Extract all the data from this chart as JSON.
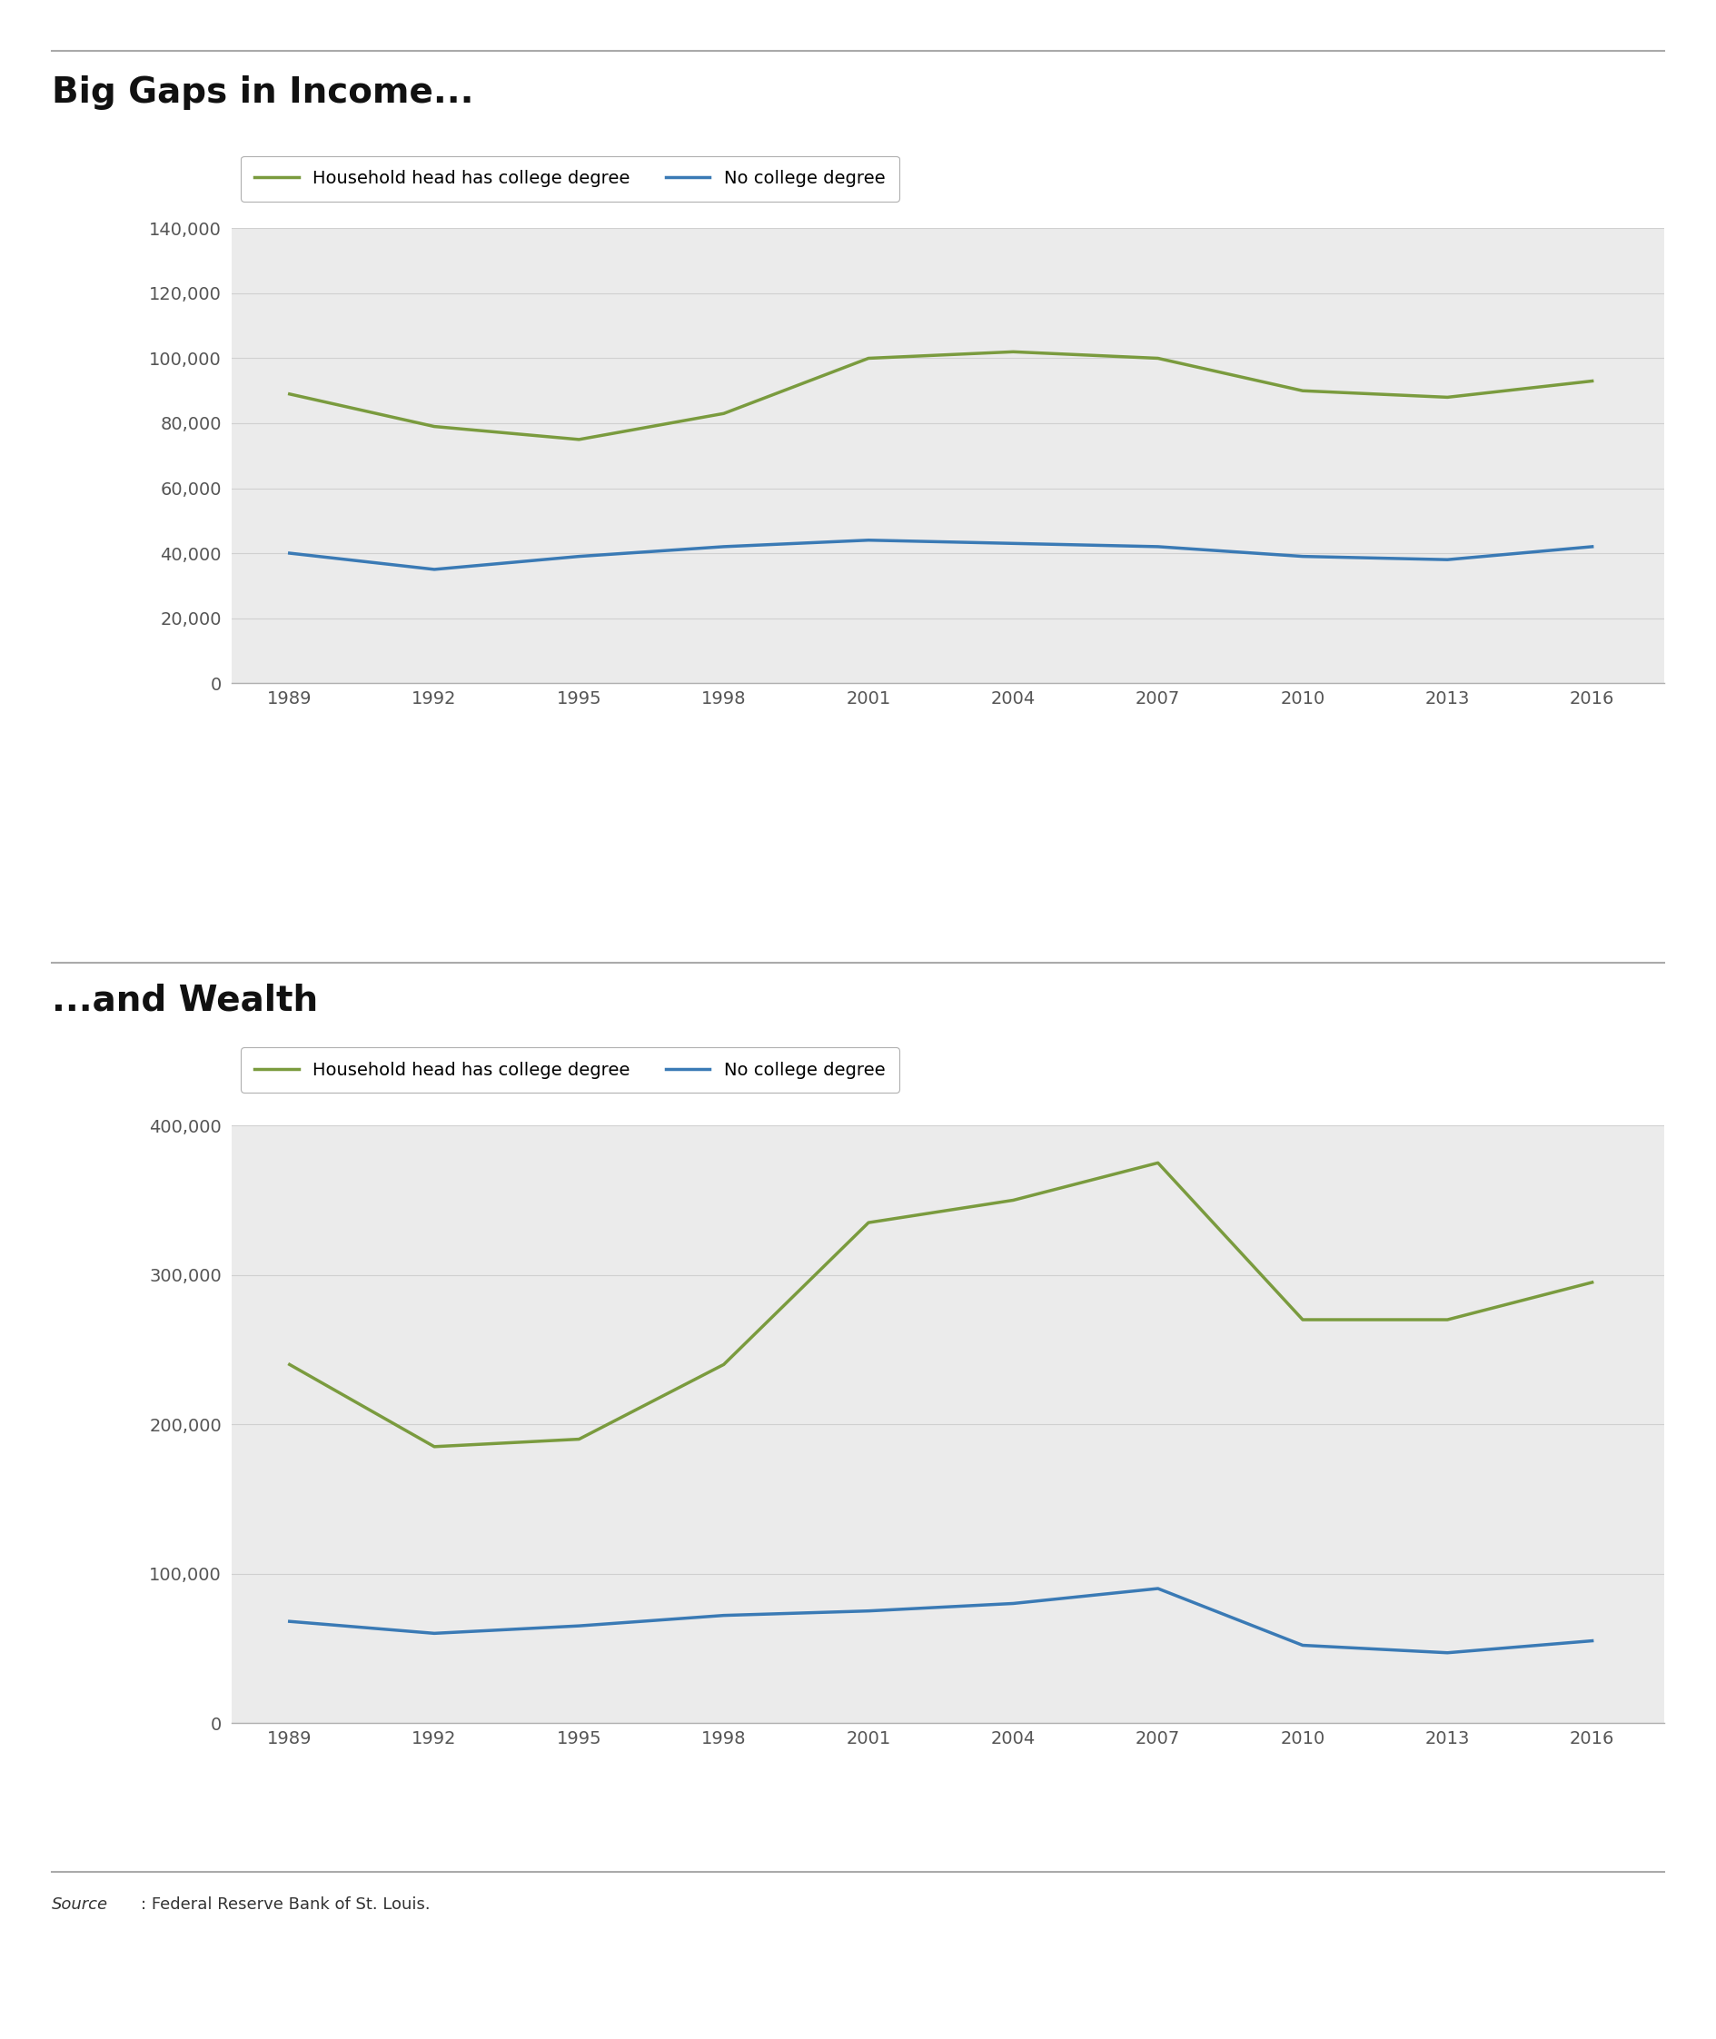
{
  "years": [
    1989,
    1992,
    1995,
    1998,
    2001,
    2004,
    2007,
    2010,
    2013,
    2016
  ],
  "income_college": [
    89000,
    79000,
    75000,
    83000,
    100000,
    102000,
    100000,
    90000,
    88000,
    93000
  ],
  "income_no_college": [
    40000,
    35000,
    39000,
    42000,
    44000,
    43000,
    42000,
    39000,
    38000,
    42000
  ],
  "wealth_college": [
    240000,
    185000,
    190000,
    240000,
    335000,
    350000,
    375000,
    270000,
    270000,
    295000
  ],
  "wealth_no_college": [
    68000,
    60000,
    65000,
    72000,
    75000,
    80000,
    90000,
    52000,
    47000,
    55000
  ],
  "color_college": "#7a9b3e",
  "color_no_college": "#3a7ab5",
  "title_income": "Big Gaps in Income...",
  "title_wealth": "...and Wealth",
  "legend_college": "Household head has college degree",
  "legend_no_college": "No college degree",
  "source_italic": "Source",
  "source_rest": ": Federal Reserve Bank of St. Louis.",
  "income_ylim": [
    0,
    140000
  ],
  "income_yticks": [
    0,
    20000,
    40000,
    60000,
    80000,
    100000,
    120000,
    140000
  ],
  "wealth_ylim": [
    0,
    400000
  ],
  "wealth_yticks": [
    0,
    100000,
    200000,
    300000,
    400000
  ],
  "background_color": "#ffffff",
  "plot_bg_color": "#ebebeb"
}
